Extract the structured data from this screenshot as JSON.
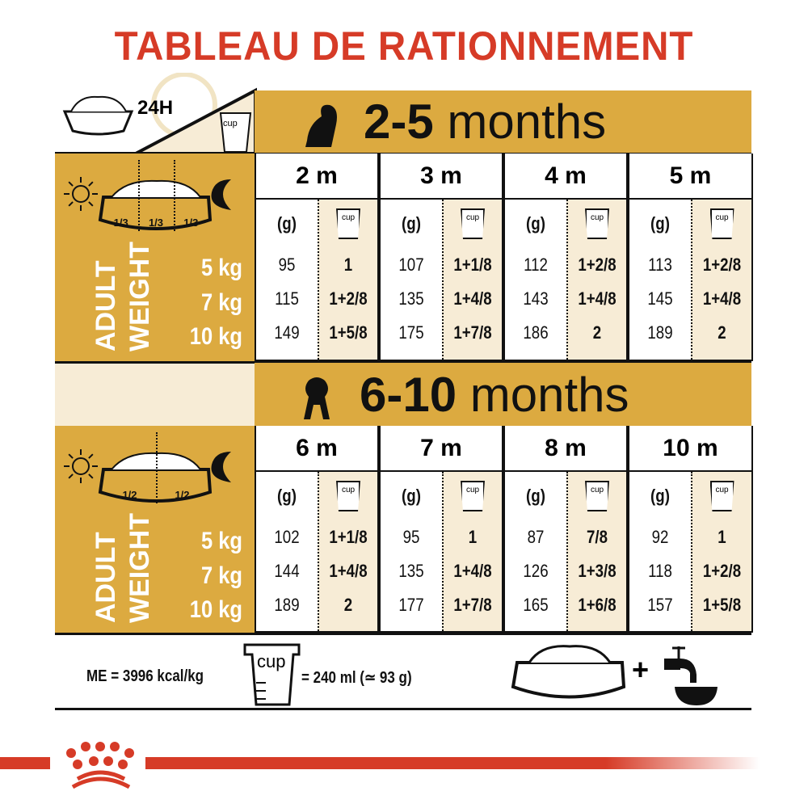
{
  "title": "TABLEAU DE RATIONNEMENT",
  "corner": {
    "duration": "24H",
    "cup_label": "cup"
  },
  "side_label": {
    "line1": "ADULT",
    "line2": "WEIGHT"
  },
  "weights": [
    "5 kg",
    "7 kg",
    "10 kg"
  ],
  "col_headers": {
    "grams": "(g)",
    "cup": "cup"
  },
  "sections": [
    {
      "title_num": "2-5",
      "title_unit": "months",
      "fractions": [
        "1/3",
        "1/3",
        "1/3"
      ],
      "months": [
        {
          "label": "2 m",
          "grams": [
            "95",
            "115",
            "149"
          ],
          "cups": [
            "1",
            "1+2/8",
            "1+5/8"
          ]
        },
        {
          "label": "3 m",
          "grams": [
            "107",
            "135",
            "175"
          ],
          "cups": [
            "1+1/8",
            "1+4/8",
            "1+7/8"
          ]
        },
        {
          "label": "4 m",
          "grams": [
            "112",
            "143",
            "186"
          ],
          "cups": [
            "1+2/8",
            "1+4/8",
            "2"
          ]
        },
        {
          "label": "5 m",
          "grams": [
            "113",
            "145",
            "189"
          ],
          "cups": [
            "1+2/8",
            "1+4/8",
            "2"
          ]
        }
      ]
    },
    {
      "title_num": "6-10",
      "title_unit": "months",
      "fractions": [
        "1/2",
        "1/2"
      ],
      "months": [
        {
          "label": "6 m",
          "grams": [
            "102",
            "144",
            "189"
          ],
          "cups": [
            "1+1/8",
            "1+4/8",
            "2"
          ]
        },
        {
          "label": "7 m",
          "grams": [
            "95",
            "135",
            "177"
          ],
          "cups": [
            "1",
            "1+4/8",
            "1+7/8"
          ]
        },
        {
          "label": "8 m",
          "grams": [
            "87",
            "126",
            "165"
          ],
          "cups": [
            "7/8",
            "1+3/8",
            "1+6/8"
          ]
        },
        {
          "label": "10 m",
          "grams": [
            "92",
            "118",
            "157"
          ],
          "cups": [
            "1",
            "1+2/8",
            "1+5/8"
          ]
        }
      ]
    }
  ],
  "footer": {
    "energy": "ME = 3996 kcal/kg",
    "cup_label": "cup",
    "cup_equiv": "= 240 ml (≃ 93 g)",
    "plus": "+"
  },
  "colors": {
    "title_red": "#d63b27",
    "gold": "#dcaa40",
    "cream": "#f7ecd6"
  }
}
